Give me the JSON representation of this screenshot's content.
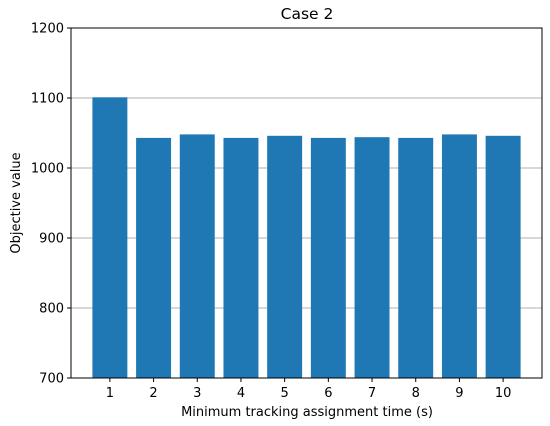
{
  "chart_data": {
    "type": "bar",
    "title": "Case 2",
    "xlabel": "Minimum tracking assignment time (s)",
    "ylabel": "Objective value",
    "categories": [
      "1",
      "2",
      "3",
      "4",
      "5",
      "6",
      "7",
      "8",
      "9",
      "10"
    ],
    "values": [
      1101,
      1043,
      1048,
      1043,
      1046,
      1043,
      1044,
      1043,
      1048,
      1046
    ],
    "ylim": [
      700,
      1200
    ],
    "yticks": [
      700,
      800,
      900,
      1000,
      1100,
      1200
    ],
    "grid": "horizontal",
    "bar_color": "#1f77b4",
    "grid_color": "#b0b0b0"
  }
}
